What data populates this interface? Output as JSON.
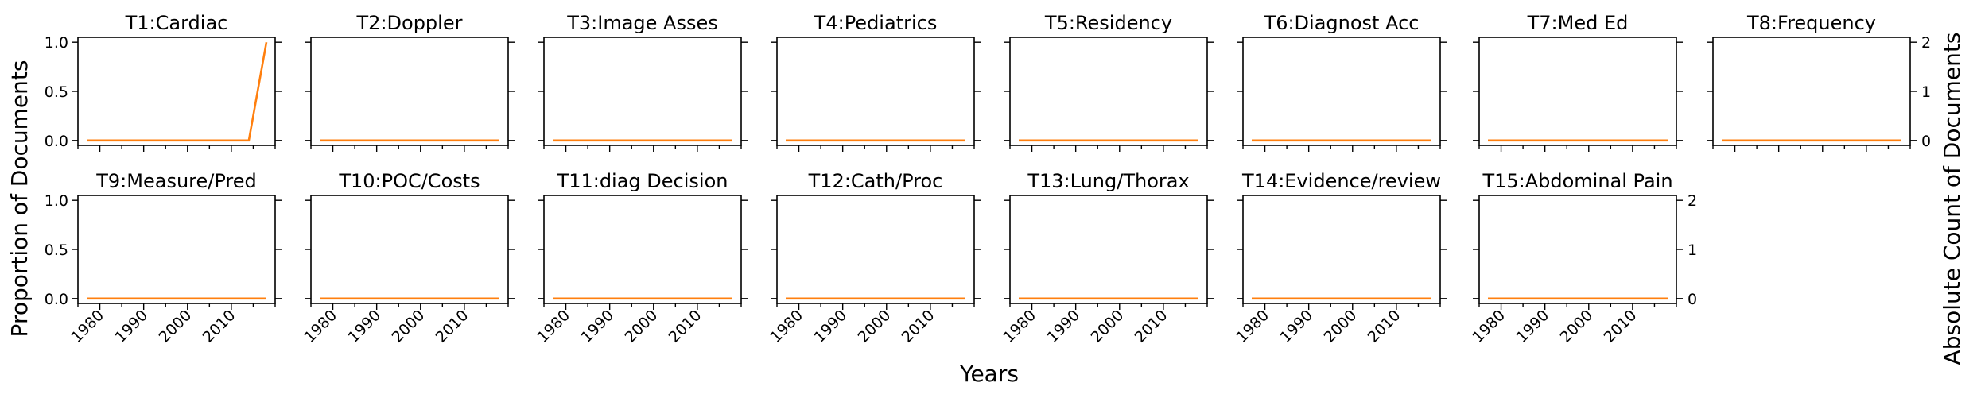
{
  "figure": {
    "xlabel": "Years",
    "ylabel_left": "Proportion of Documents",
    "ylabel_right": "Absolute Count of Documents"
  },
  "chart_data": {
    "type": "line",
    "x_range": [
      1975,
      2020
    ],
    "x_ticks": [
      1980,
      1990,
      2000,
      2010
    ],
    "left_axis": {
      "range": [
        -0.05,
        1.05
      ],
      "ticks": [
        "0.0",
        "0.5",
        "1.0"
      ],
      "label": "Proportion of Documents"
    },
    "right_axis": {
      "range": [
        -0.1,
        2.1
      ],
      "ticks": [
        "0",
        "1",
        "2"
      ],
      "label": "Absolute Count of Documents"
    },
    "line_color": "#ff7f0e",
    "panels": [
      {
        "title": "T1:Cardiac",
        "series": {
          "x": [
            1977,
            2014,
            2018
          ],
          "y": [
            0,
            0,
            1
          ]
        }
      },
      {
        "title": "T2:Doppler",
        "series": {
          "x": [
            1977,
            2018
          ],
          "y": [
            0,
            0
          ]
        }
      },
      {
        "title": "T3:Image Asses",
        "series": {
          "x": [
            1977,
            2018
          ],
          "y": [
            0,
            0
          ]
        }
      },
      {
        "title": "T4:Pediatrics",
        "series": {
          "x": [
            1977,
            2018
          ],
          "y": [
            0,
            0
          ]
        }
      },
      {
        "title": "T5:Residency",
        "series": {
          "x": [
            1977,
            2018
          ],
          "y": [
            0,
            0
          ]
        }
      },
      {
        "title": "T6:Diagnost Acc",
        "series": {
          "x": [
            1977,
            2018
          ],
          "y": [
            0,
            0
          ]
        }
      },
      {
        "title": "T7:Med Ed",
        "series": {
          "x": [
            1977,
            2018
          ],
          "y": [
            0,
            0
          ]
        }
      },
      {
        "title": "T8:Frequency",
        "series": {
          "x": [
            1977,
            2018
          ],
          "y": [
            0,
            0
          ]
        }
      },
      {
        "title": "T9:Measure/Pred",
        "series": {
          "x": [
            1977,
            2018
          ],
          "y": [
            0,
            0
          ]
        }
      },
      {
        "title": "T10:POC/Costs",
        "series": {
          "x": [
            1977,
            2018
          ],
          "y": [
            0,
            0
          ]
        }
      },
      {
        "title": "T11:diag Decision",
        "series": {
          "x": [
            1977,
            2018
          ],
          "y": [
            0,
            0
          ]
        }
      },
      {
        "title": "T12:Cath/Proc",
        "series": {
          "x": [
            1977,
            2018
          ],
          "y": [
            0,
            0
          ]
        }
      },
      {
        "title": "T13:Lung/Thorax",
        "series": {
          "x": [
            1977,
            2018
          ],
          "y": [
            0,
            0
          ]
        }
      },
      {
        "title": "T14:Evidence/review",
        "series": {
          "x": [
            1977,
            2018
          ],
          "y": [
            0,
            0
          ]
        }
      },
      {
        "title": "T15:Abdominal Pain",
        "series": {
          "x": [
            1977,
            2018
          ],
          "y": [
            0,
            0
          ]
        }
      }
    ]
  }
}
